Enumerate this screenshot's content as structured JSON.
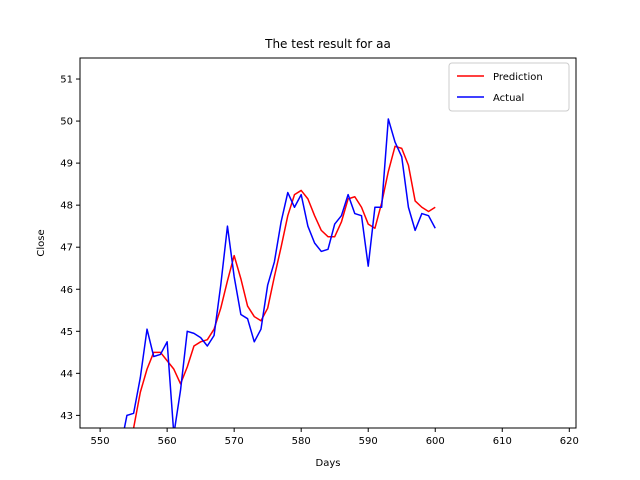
{
  "chart_data": {
    "type": "line",
    "title": "The test result for aa",
    "xlabel": "Days",
    "ylabel": "Close",
    "xlim": [
      547,
      621
    ],
    "ylim": [
      42.7,
      51.5
    ],
    "xticks": [
      550,
      560,
      570,
      580,
      590,
      600,
      610,
      620
    ],
    "yticks": [
      43,
      44,
      45,
      46,
      47,
      48,
      49,
      50,
      51
    ],
    "grid": false,
    "legend_position": "top-right",
    "x": [
      553,
      554,
      555,
      556,
      557,
      558,
      559,
      560,
      561,
      562,
      563,
      564,
      565,
      566,
      567,
      568,
      569,
      570,
      571,
      572,
      573,
      574,
      575,
      576,
      577,
      578,
      579,
      580,
      581,
      582,
      583,
      584,
      585,
      586,
      587,
      588,
      589,
      590,
      591,
      592,
      593,
      594,
      595,
      596,
      597,
      598,
      599,
      600
    ],
    "series": [
      {
        "name": "Prediction",
        "color": "#ff0000",
        "values": [
          42.3,
          42.4,
          42.7,
          43.55,
          44.1,
          44.5,
          44.5,
          44.3,
          44.1,
          43.75,
          44.15,
          44.65,
          44.75,
          44.8,
          45.05,
          45.55,
          46.2,
          46.8,
          46.25,
          45.6,
          45.35,
          45.25,
          45.55,
          46.3,
          47.0,
          47.75,
          48.25,
          48.35,
          48.15,
          47.75,
          47.4,
          47.25,
          47.25,
          47.6,
          48.15,
          48.2,
          47.95,
          47.55,
          47.45,
          48.05,
          48.8,
          49.4,
          49.35,
          48.95,
          48.1,
          47.95,
          47.85,
          47.95
        ]
      },
      {
        "name": "Actual",
        "color": "#0000ff",
        "values": [
          42.2,
          43.0,
          43.05,
          43.9,
          45.05,
          44.4,
          44.45,
          44.75,
          42.55,
          43.6,
          45.0,
          44.95,
          44.85,
          44.65,
          44.9,
          46.1,
          47.5,
          46.3,
          45.4,
          45.3,
          44.75,
          45.05,
          46.1,
          46.65,
          47.6,
          48.3,
          47.95,
          48.25,
          47.5,
          47.1,
          46.9,
          46.95,
          47.55,
          47.75,
          48.25,
          47.8,
          47.75,
          46.55,
          47.95,
          47.95,
          50.05,
          49.5,
          49.15,
          47.95,
          47.4,
          47.8,
          47.75,
          47.45
        ]
      }
    ]
  }
}
